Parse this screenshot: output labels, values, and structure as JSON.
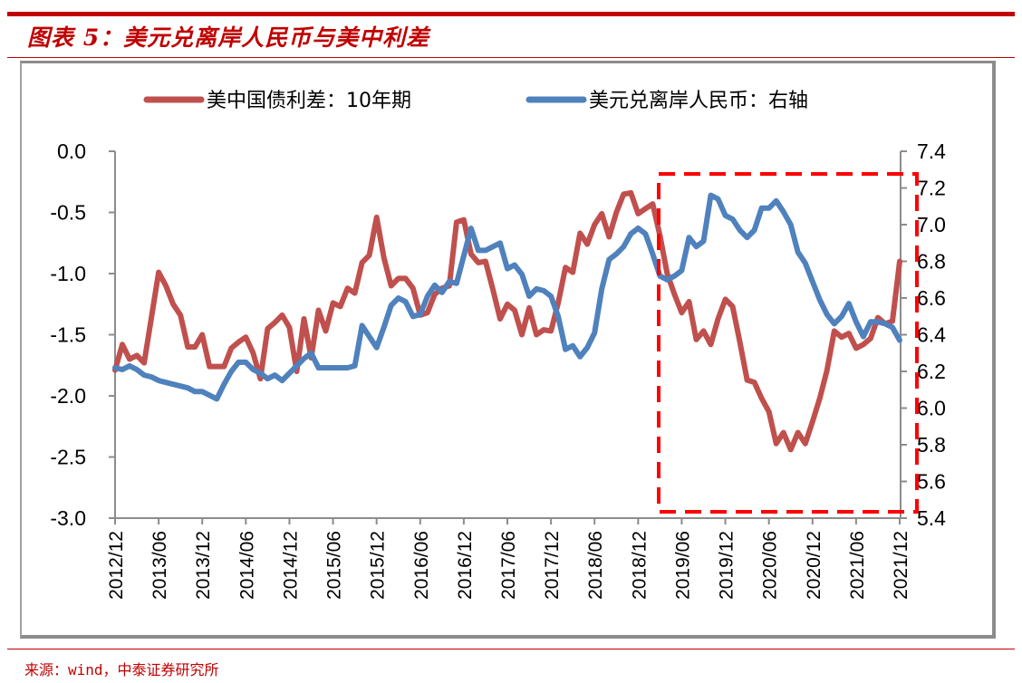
{
  "header": {
    "title": "图表 5：美元兑离岸人民币与美中利差"
  },
  "footer": {
    "source": "来源：wind，中泰证券研究所"
  },
  "chart_data": {
    "type": "line",
    "title": "美元兑离岸人民币与美中利差",
    "xlabel": "",
    "ylabel": "",
    "legend_position": "top",
    "grid": false,
    "x_start": "2012/12",
    "x_end": "2021/12",
    "frequency": "monthly",
    "x_tick_labels": [
      "2012/12",
      "2013/06",
      "2013/12",
      "2014/06",
      "2014/12",
      "2015/06",
      "2015/12",
      "2016/06",
      "2016/12",
      "2017/06",
      "2017/12",
      "2018/06",
      "2018/12",
      "2019/06",
      "2019/12",
      "2020/06",
      "2020/12",
      "2021/06",
      "2021/12"
    ],
    "y_left": {
      "ylim": [
        -3.0,
        0.0
      ],
      "tick_labels": [
        "0.0",
        "-0.5",
        "-1.0",
        "-1.5",
        "-2.0",
        "-2.5",
        "-3.0"
      ],
      "tick_values": [
        0.0,
        -0.5,
        -1.0,
        -1.5,
        -2.0,
        -2.5,
        -3.0
      ]
    },
    "y_right": {
      "ylim": [
        5.4,
        7.4
      ],
      "tick_labels": [
        "7.4",
        "7.2",
        "7.0",
        "6.8",
        "6.6",
        "6.4",
        "6.2",
        "6.0",
        "5.8",
        "5.6",
        "5.4"
      ],
      "tick_values": [
        7.4,
        7.2,
        7.0,
        6.8,
        6.6,
        6.4,
        6.2,
        6.0,
        5.8,
        5.6,
        5.4
      ]
    },
    "series": [
      {
        "name": "美中国债利差：10年期",
        "axis": "left",
        "color": "#c0504d",
        "values": [
          -1.79,
          -1.58,
          -1.7,
          -1.67,
          -1.73,
          -1.36,
          -0.99,
          -1.1,
          -1.25,
          -1.34,
          -1.6,
          -1.6,
          -1.5,
          -1.76,
          -1.76,
          -1.76,
          -1.61,
          -1.56,
          -1.52,
          -1.65,
          -1.86,
          -1.45,
          -1.4,
          -1.34,
          -1.44,
          -1.8,
          -1.37,
          -1.69,
          -1.3,
          -1.47,
          -1.24,
          -1.27,
          -1.12,
          -1.16,
          -0.91,
          -0.85,
          -0.54,
          -0.87,
          -1.1,
          -1.04,
          -1.04,
          -1.12,
          -1.34,
          -1.32,
          -1.17,
          -1.12,
          -1.1,
          -0.58,
          -0.56,
          -0.84,
          -0.91,
          -0.9,
          -1.13,
          -1.37,
          -1.25,
          -1.3,
          -1.5,
          -1.28,
          -1.5,
          -1.46,
          -1.47,
          -1.24,
          -0.95,
          -0.99,
          -0.67,
          -0.76,
          -0.6,
          -0.51,
          -0.7,
          -0.5,
          -0.35,
          -0.34,
          -0.51,
          -0.47,
          -0.43,
          -0.69,
          -1.0,
          -1.17,
          -1.32,
          -1.23,
          -1.54,
          -1.47,
          -1.58,
          -1.37,
          -1.21,
          -1.27,
          -1.56,
          -1.87,
          -1.89,
          -2.02,
          -2.13,
          -2.39,
          -2.3,
          -2.44,
          -2.3,
          -2.39,
          -2.21,
          -2.02,
          -1.79,
          -1.47,
          -1.52,
          -1.49,
          -1.61,
          -1.58,
          -1.53,
          -1.36,
          -1.41,
          -1.39,
          -0.9
        ]
      },
      {
        "name": "美元兑离岸人民币：右轴",
        "axis": "right",
        "color": "#4f81bd",
        "values": [
          6.22,
          6.21,
          6.23,
          6.21,
          6.18,
          6.17,
          6.15,
          6.14,
          6.13,
          6.12,
          6.11,
          6.09,
          6.09,
          6.07,
          6.05,
          6.13,
          6.2,
          6.25,
          6.25,
          6.21,
          6.19,
          6.16,
          6.18,
          6.15,
          6.19,
          6.23,
          6.27,
          6.3,
          6.22,
          6.22,
          6.22,
          6.22,
          6.22,
          6.23,
          6.45,
          6.39,
          6.33,
          6.44,
          6.56,
          6.6,
          6.58,
          6.5,
          6.51,
          6.61,
          6.67,
          6.63,
          6.69,
          6.68,
          6.83,
          6.98,
          6.86,
          6.86,
          6.88,
          6.9,
          6.76,
          6.78,
          6.73,
          6.61,
          6.65,
          6.64,
          6.61,
          6.5,
          6.32,
          6.34,
          6.28,
          6.33,
          6.41,
          6.65,
          6.81,
          6.84,
          6.88,
          6.95,
          6.98,
          6.95,
          6.84,
          6.72,
          6.7,
          6.72,
          6.75,
          6.93,
          6.88,
          6.91,
          7.16,
          7.14,
          7.05,
          7.03,
          6.97,
          6.93,
          6.97,
          7.09,
          7.09,
          7.13,
          7.07,
          7.0,
          6.85,
          6.79,
          6.69,
          6.59,
          6.51,
          6.46,
          6.5,
          6.57,
          6.47,
          6.39,
          6.47,
          6.47,
          6.46,
          6.44,
          6.37
        ]
      }
    ],
    "annotations": [
      {
        "type": "dashed-rectangle",
        "color": "#ff0000",
        "x_from": "2019/02",
        "x_to": "2021/12",
        "meaning": "highlight"
      }
    ]
  }
}
